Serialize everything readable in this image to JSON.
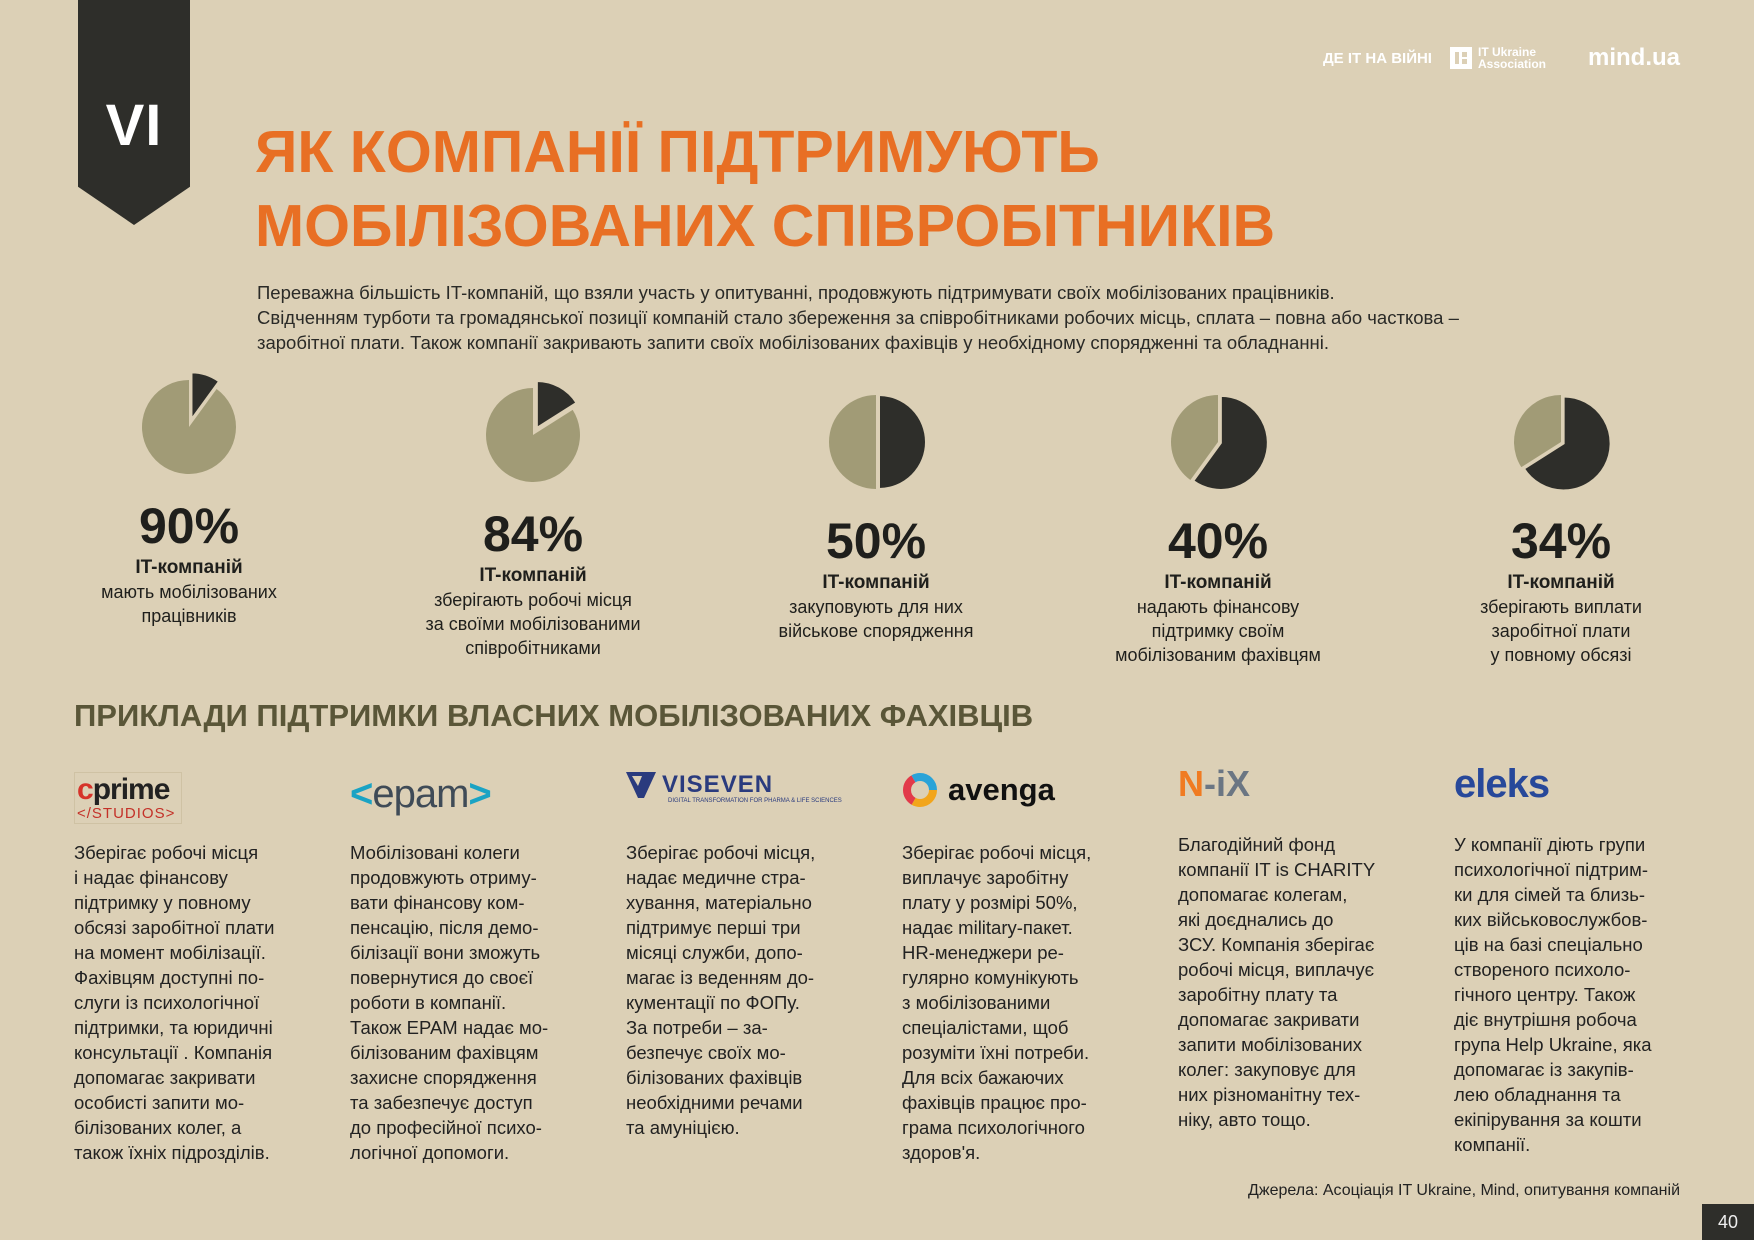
{
  "chapter": "VI",
  "brand": {
    "war_label": "ДЕ IT НА ВІЙНІ",
    "assoc_label": "IT Ukraine Association",
    "mind_label": "mind.ua"
  },
  "title": {
    "line1": "ЯК КОМПАНІЇ ПІДТРИМУЮТЬ",
    "line2": "МОБІЛІЗОВАНИХ СПІВРОБІТНИКІВ"
  },
  "intro": {
    "line1": "Переважна більшість IT-компаній, що взяли участь у опитуванні, продовжують підтримувати своїх мобілізованих працівників.",
    "line2": "Свідченням турботи та громадянської позиції компаній стало збереження за співробітниками робочих місць, сплата – повна або часткова –",
    "line3": "заробітної плати. Також компанії закривають запити своїх мобілізованих фахівців у необхідному спорядженні та обладнанні."
  },
  "colors": {
    "title": "#e86f24",
    "pie_main": "#a19b76",
    "pie_slice": "#2e2e2a",
    "examples_title": "#5a5638"
  },
  "stats": [
    {
      "value": "90%",
      "unit": "IT-компаній",
      "desc": [
        "мають мобілізованих",
        "працівників"
      ],
      "fraction": 0.9
    },
    {
      "value": "84%",
      "unit": "IT-компаній",
      "desc": [
        "зберігають робочі місця",
        "за своїми мобілізованими",
        "співробітниками"
      ],
      "fraction": 0.84
    },
    {
      "value": "50%",
      "unit": "IT-компаній",
      "desc": [
        "закуповують для них",
        "військове спорядження"
      ],
      "fraction": 0.5
    },
    {
      "value": "40%",
      "unit": "IT-компаній",
      "desc": [
        "надають фінансову",
        "підтримку своїм",
        "мобілізованим фахівцям"
      ],
      "fraction": 0.4
    },
    {
      "value": "34%",
      "unit": "IT-компаній",
      "desc": [
        "зберігають виплати",
        "заробітної плати",
        "у повному обсязі"
      ],
      "fraction": 0.34
    }
  ],
  "examples_title": "ПРИКЛАДИ ПІДТРИМКИ ВЛАСНИХ МОБІЛІЗОВАНИХ ФАХІВЦІВ",
  "companies": [
    {
      "logo_main": "cprime",
      "logo_sub": "</STUDIOS>",
      "text": [
        "Зберігає робочі місця",
        "і надає фінансову",
        "підтримку у повному",
        "обсязі заробітної плати",
        "на момент мобілізації.",
        "Фахівцям доступні по-",
        "слуги із психологічної",
        "підтримки, та юридичні",
        "консультації . Компанія",
        "допомагає закривати",
        "особисті запити мо-",
        "білізованих колег, а",
        "також їхніх підрозділів."
      ]
    },
    {
      "logo_main": "epam",
      "text": [
        "Мобілізовані колеги",
        "продовжують отриму-",
        "вати фінансову ком-",
        "пенсацію, після демо-",
        "білізації вони зможуть",
        "повернутися до своєї",
        "роботи в компанії.",
        "Також EPAM надає мо-",
        "білізованим фахівцям",
        "захисне спорядження",
        "та забезпечує доступ",
        "до професійної психо-",
        "логічної допомоги."
      ]
    },
    {
      "logo_main": "VISEVEN",
      "logo_sub": "DIGITAL TRANSFORMATION FOR PHARMA & LIFE SCIENCES",
      "text": [
        "Зберігає робочі місця,",
        "надає медичне стра-",
        "хування, матеріально",
        "підтримує перші три",
        "місяці служби, допо-",
        "магає із веденням до-",
        "кументації по ФОПу.",
        "За потреби – за-",
        "безпечує своїх мо-",
        "білізованих фахівців",
        "необхідними речами",
        "та амуніцією."
      ]
    },
    {
      "logo_main": "avenga",
      "text": [
        "Зберігає робочі місця,",
        "виплачує заробітну",
        "плату у розмірі 50%,",
        "надає military-пакет.",
        "HR-менеджери ре-",
        "гулярно комунікують",
        "з мобілізованими",
        "спеціалістами, щоб",
        "розуміти їхні потреби.",
        "Для всіх бажаючих",
        "фахівців працює про-",
        "грама психологічного",
        "здоров'я."
      ]
    },
    {
      "logo_main": "N-iX",
      "text": [
        "Благодійний фонд",
        "компанії IT is CHARITY",
        "допомагає колегам,",
        "які доєднались до",
        "ЗСУ. Компанія зберігає",
        "робочі місця, виплачує",
        "заробітну плату та",
        "допомагає закривати",
        "запити мобілізованих",
        "колег: закуповує для",
        "них різноманітну тех-",
        "ніку, авто тощо."
      ]
    },
    {
      "logo_main": "eleks",
      "text": [
        "У компанії діють групи",
        "психологічної підтрим-",
        "ки для сімей та близь-",
        "ких військовослужбов-",
        "ців на базі спеціально",
        "створеного психоло-",
        "гічного центру. Також",
        "діє внутрішня робоча",
        "група Help Ukraine, яка",
        "допомагає із закупів-",
        "лею обладнання та",
        "екіпірування за кошти",
        "компанії."
      ]
    }
  ],
  "sources": "Джерела: Асоціація IT Ukraine, Mind, опитування компаній",
  "page_number": "40"
}
